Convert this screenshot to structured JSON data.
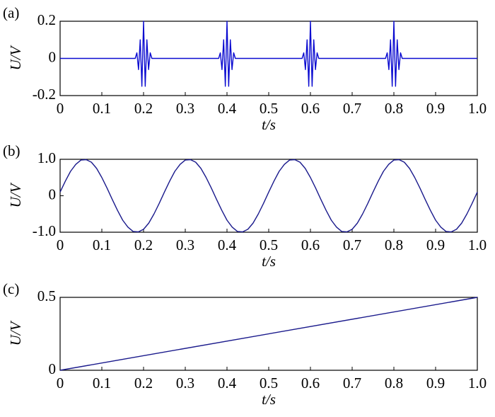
{
  "chart_data": [
    {
      "type": "line",
      "label": "(a)",
      "ylabel": "U/V",
      "xlabel": "t/s",
      "color": "#0a0ad0",
      "x": [
        0,
        0.18,
        0.184,
        0.188,
        0.192,
        0.196,
        0.2,
        0.204,
        0.208,
        0.212,
        0.216,
        0.22,
        0.38,
        0.384,
        0.388,
        0.392,
        0.396,
        0.4,
        0.404,
        0.408,
        0.412,
        0.416,
        0.42,
        0.58,
        0.584,
        0.588,
        0.592,
        0.596,
        0.6,
        0.604,
        0.608,
        0.612,
        0.616,
        0.62,
        0.78,
        0.784,
        0.788,
        0.792,
        0.796,
        0.8,
        0.804,
        0.808,
        0.812,
        0.816,
        0.82,
        1.0
      ],
      "values": [
        0,
        0,
        0.03,
        -0.06,
        0.1,
        -0.15,
        0.2,
        -0.15,
        0.1,
        -0.06,
        0.03,
        0,
        0,
        0.03,
        -0.06,
        0.1,
        -0.15,
        0.2,
        -0.15,
        0.1,
        -0.06,
        0.03,
        0,
        0,
        0.03,
        -0.06,
        0.1,
        -0.15,
        0.2,
        -0.15,
        0.1,
        -0.06,
        0.03,
        0,
        0,
        0.03,
        -0.06,
        0.1,
        -0.15,
        0.2,
        -0.15,
        0.1,
        -0.06,
        0.03,
        0,
        0
      ],
      "xlim": [
        0,
        1
      ],
      "ylim": [
        -0.2,
        0.2
      ],
      "xticks": [
        0,
        0.1,
        0.2,
        0.3,
        0.4,
        0.5,
        0.6,
        0.7,
        0.8,
        0.9,
        {
          "value": 1,
          "label": "1.0"
        }
      ],
      "yticks": [
        -0.2,
        0,
        0.2
      ]
    },
    {
      "type": "line",
      "label": "(b)",
      "ylabel": "U/V",
      "xlabel": "t/s",
      "color": "#1a1a8c",
      "x": [
        0,
        0.0125,
        0.025,
        0.0375,
        0.05,
        0.0625,
        0.075,
        0.0875,
        0.1,
        0.1125,
        0.125,
        0.1375,
        0.15,
        0.1625,
        0.175,
        0.1875,
        0.2,
        0.2125,
        0.225,
        0.2375,
        0.25,
        0.2625,
        0.275,
        0.2875,
        0.3,
        0.3125,
        0.325,
        0.3375,
        0.35,
        0.3625,
        0.375,
        0.3875,
        0.4,
        0.4125,
        0.425,
        0.4375,
        0.45,
        0.4625,
        0.475,
        0.4875,
        0.5,
        0.5125,
        0.525,
        0.5375,
        0.55,
        0.5625,
        0.575,
        0.5875,
        0.6,
        0.6125,
        0.625,
        0.6375,
        0.65,
        0.6625,
        0.675,
        0.6875,
        0.7,
        0.7125,
        0.725,
        0.7375,
        0.75,
        0.7625,
        0.775,
        0.7875,
        0.8,
        0.8125,
        0.825,
        0.8375,
        0.85,
        0.8625,
        0.875,
        0.8875,
        0.9,
        0.9125,
        0.925,
        0.9375,
        0.95,
        0.9625,
        0.975,
        0.9875,
        1.0
      ],
      "values": [
        0.1,
        0.4,
        0.67,
        0.86,
        0.98,
        0.99,
        0.92,
        0.75,
        0.5,
        0.21,
        -0.1,
        -0.4,
        -0.67,
        -0.86,
        -0.98,
        -0.99,
        -0.92,
        -0.75,
        -0.5,
        -0.21,
        0.1,
        0.4,
        0.67,
        0.86,
        0.98,
        0.99,
        0.92,
        0.75,
        0.5,
        0.21,
        -0.1,
        -0.4,
        -0.67,
        -0.86,
        -0.98,
        -0.99,
        -0.92,
        -0.75,
        -0.5,
        -0.21,
        0.1,
        0.4,
        0.67,
        0.86,
        0.98,
        0.99,
        0.92,
        0.75,
        0.5,
        0.21,
        -0.1,
        -0.4,
        -0.67,
        -0.86,
        -0.98,
        -0.99,
        -0.92,
        -0.75,
        -0.5,
        -0.21,
        0.1,
        0.4,
        0.67,
        0.86,
        0.98,
        0.99,
        0.92,
        0.75,
        0.5,
        0.21,
        -0.1,
        -0.4,
        -0.67,
        -0.86,
        -0.98,
        -0.99,
        -0.92,
        -0.75,
        -0.5,
        -0.21,
        0.1
      ],
      "xlim": [
        0,
        1
      ],
      "ylim": [
        -1,
        1
      ],
      "xticks": [
        0,
        0.1,
        0.2,
        0.3,
        0.4,
        0.5,
        0.6,
        0.7,
        0.8,
        0.9,
        {
          "value": 1,
          "label": "1.0"
        }
      ],
      "yticks": [
        {
          "value": -1,
          "label": "-1.0"
        },
        0,
        {
          "value": 1,
          "label": "1.0"
        }
      ]
    },
    {
      "type": "line",
      "label": "(c)",
      "ylabel": "U/V",
      "xlabel": "t/s",
      "color": "#1a1a8c",
      "x": [
        0,
        1.0
      ],
      "values": [
        0,
        0.5
      ],
      "xlim": [
        0,
        1
      ],
      "ylim": [
        0,
        0.5
      ],
      "xticks": [
        0,
        0.1,
        0.2,
        0.3,
        0.4,
        0.5,
        0.6,
        0.7,
        0.8,
        0.9,
        {
          "value": 1,
          "label": "1.0"
        }
      ],
      "yticks": [
        0,
        0.5
      ]
    }
  ]
}
